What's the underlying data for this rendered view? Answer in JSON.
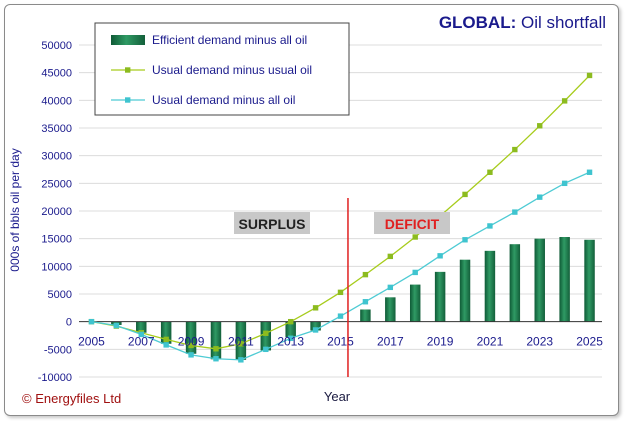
{
  "chart_data": {
    "type": "bar",
    "title_prefix": "GLOBAL:",
    "title_rest": " Oil shortfall",
    "xlabel": "Year",
    "ylabel": "000s of bbls oil per day",
    "ylim": [
      -10000,
      50000
    ],
    "yticks": [
      -10000,
      -5000,
      0,
      5000,
      10000,
      15000,
      20000,
      25000,
      30000,
      35000,
      40000,
      45000,
      50000
    ],
    "ytick_labels": [
      "-10000",
      "-5000",
      "0",
      "5000",
      "10000",
      "15000",
      "20000",
      "25000",
      "30000",
      "35000",
      "40000",
      "45000",
      "50000"
    ],
    "years": [
      2005,
      2006,
      2007,
      2008,
      2009,
      2010,
      2011,
      2012,
      2013,
      2014,
      2015,
      2016,
      2017,
      2018,
      2019,
      2020,
      2021,
      2022,
      2023,
      2024,
      2025
    ],
    "xtick_labels": [
      "2005",
      "2007",
      "2009",
      "2011",
      "2013",
      "2015",
      "2017",
      "2019",
      "2021",
      "2023",
      "2025"
    ],
    "divider_x": 2015.3,
    "series": [
      {
        "name": "Efficient demand minus all oil",
        "kind": "bar",
        "color": "#1f7a4d",
        "values": [
          0,
          -600,
          -2000,
          -4000,
          -5800,
          -6800,
          -6900,
          -5200,
          -2800,
          -1600,
          0,
          2200,
          4400,
          6700,
          9000,
          11200,
          12800,
          14000,
          15000,
          15300,
          14800
        ]
      },
      {
        "name": "Usual demand minus usual oil",
        "kind": "line",
        "color": "#a7cc1c",
        "marker_color": "#8cbb1f",
        "values": [
          0,
          -800,
          -2000,
          -3200,
          -4300,
          -4900,
          -4000,
          -2100,
          0,
          2500,
          5300,
          8500,
          11800,
          15300,
          19100,
          23000,
          27000,
          31100,
          35400,
          39900,
          44500
        ]
      },
      {
        "name": "Usual demand minus all oil",
        "kind": "line",
        "color": "#4ecbd4",
        "marker_color": "#3fc4cf",
        "values": [
          0,
          -700,
          -2300,
          -4200,
          -6000,
          -6700,
          -6900,
          -5000,
          -3000,
          -1500,
          1000,
          3600,
          6200,
          8900,
          11900,
          14800,
          17300,
          19800,
          22500,
          25000,
          27000
        ]
      }
    ],
    "annotations": {
      "surplus": "SURPLUS",
      "deficit": "DEFICIT",
      "copyright": "© Energyfiles Ltd"
    },
    "colors": {
      "title": "#1a1a8c",
      "axis_text": "#1a1a8c",
      "divider": "#e02020",
      "deficit_text": "#e02020",
      "label_box": "#c8c8c8",
      "copyright": "#a01010"
    }
  }
}
